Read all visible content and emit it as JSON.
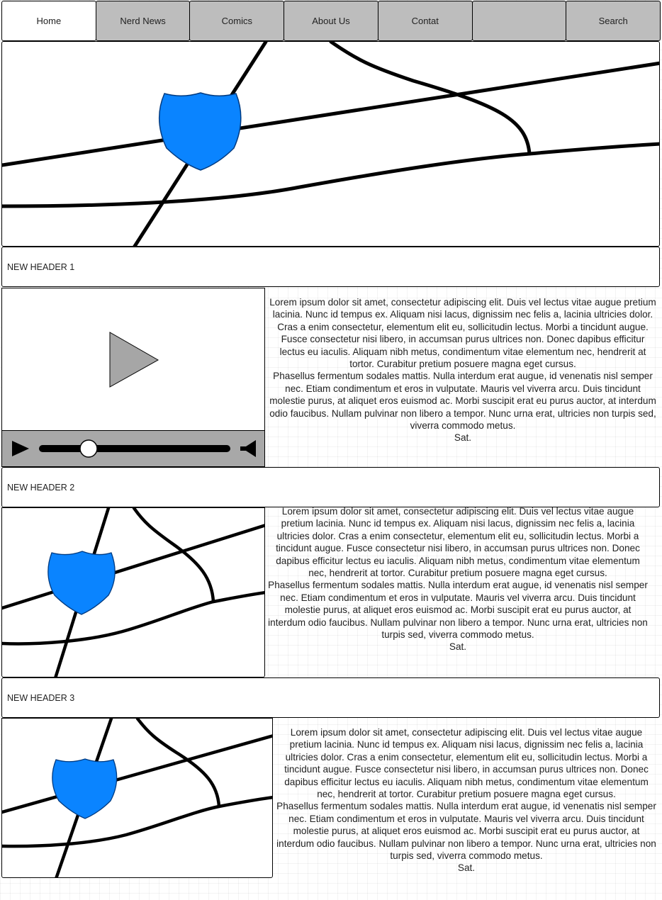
{
  "nav": {
    "tabs": [
      {
        "label": "Home",
        "active": true
      },
      {
        "label": "Nerd News",
        "active": false
      },
      {
        "label": "Comics",
        "active": false
      },
      {
        "label": "About Us",
        "active": false
      },
      {
        "label": "Contat",
        "active": false
      },
      {
        "label": "",
        "active": false
      },
      {
        "label": "Search",
        "active": false
      }
    ]
  },
  "hero": {
    "icon": "map-icon"
  },
  "sections": [
    {
      "header": "NEW HEADER 1",
      "media": "video-player",
      "para1": "Lorem ipsum dolor sit amet, consectetur adipiscing elit. Duis vel lectus vitae augue pretium lacinia. Nunc id tempus ex. Aliquam nisi lacus, dignissim nec felis a, lacinia ultricies dolor. Cras a enim consectetur, elementum elit eu, sollicitudin lectus. Morbi a tincidunt augue. Fusce consectetur nisi libero, in accumsan purus ultrices non. Donec dapibus efficitur lectus eu iaculis. Aliquam nibh metus, condimentum vitae elementum nec, hendrerit at tortor. Curabitur pretium posuere magna eget cursus.",
      "para2": "Phasellus fermentum sodales mattis. Nulla interdum erat augue, id venenatis nisl semper nec. Etiam condimentum et eros in vulputate. Mauris vel viverra arcu. Duis tincidunt molestie purus, at aliquet eros euismod ac. Morbi suscipit erat eu purus auctor, at interdum odio faucibus. Nullam pulvinar non libero a tempor. Nunc urna erat, ultricies non turpis sed, viverra commodo metus.",
      "para3": "Sat."
    },
    {
      "header": "NEW HEADER 2",
      "media": "map-icon",
      "para1": "Lorem ipsum dolor sit amet, consectetur adipiscing elit. Duis vel lectus vitae augue pretium lacinia. Nunc id tempus ex. Aliquam nisi lacus, dignissim nec felis a, lacinia ultricies dolor. Cras a enim consectetur, elementum elit eu, sollicitudin lectus. Morbi a tincidunt augue. Fusce consectetur nisi libero, in accumsan purus ultrices non. Donec dapibus efficitur lectus eu iaculis. Aliquam nibh metus, condimentum vitae elementum nec, hendrerit at tortor. Curabitur pretium posuere magna eget cursus.",
      "para2": "Phasellus fermentum sodales mattis. Nulla interdum erat augue, id venenatis nisl semper nec. Etiam condimentum et eros in vulputate. Mauris vel viverra arcu. Duis tincidunt molestie purus, at aliquet eros euismod ac. Morbi suscipit erat eu purus auctor, at interdum odio faucibus. Nullam pulvinar non libero a tempor. Nunc urna erat, ultricies non turpis sed, viverra commodo metus.",
      "para3": "Sat."
    },
    {
      "header": "NEW HEADER 3",
      "media": "map-icon",
      "para1": "Lorem ipsum dolor sit amet, consectetur adipiscing elit. Duis vel lectus vitae augue pretium lacinia. Nunc id tempus ex. Aliquam nisi lacus, dignissim nec felis a, lacinia ultricies dolor. Cras a enim consectetur, elementum elit eu, sollicitudin lectus. Morbi a tincidunt augue. Fusce consectetur nisi libero, in accumsan purus ultrices non. Donec dapibus efficitur lectus eu iaculis. Aliquam nibh metus, condimentum vitae elementum nec, hendrerit at tortor. Curabitur pretium posuere magna eget cursus.",
      "para2": "Phasellus fermentum sodales mattis. Nulla interdum erat augue, id venenatis nisl semper nec. Etiam condimentum et eros in vulputate. Mauris vel viverra arcu. Duis tincidunt molestie purus, at aliquet eros euismod ac. Morbi suscipit erat eu purus auctor, at interdum odio faucibus. Nullam pulvinar non libero a tempor. Nunc urna erat, ultricies non turpis sed, viverra commodo metus.",
      "para3": "Sat."
    }
  ],
  "player": {
    "progress": 0.25,
    "play_icon": "play-icon",
    "volume_icon": "speaker-icon"
  },
  "colors": {
    "shield": "#0a84ff",
    "nav_bg": "#bdbdbd",
    "controls_bg": "#a8a8a8"
  }
}
